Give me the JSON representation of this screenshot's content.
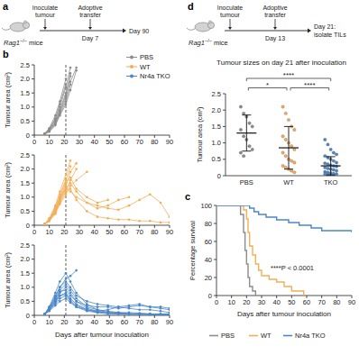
{
  "schematics": [
    {
      "panel": "a",
      "mouse_gene": "Rag1",
      "mouse_genotype": "−/−",
      "mouse_suffix": "mice",
      "steps": [
        "Inoculate tumour",
        "Adoptive transfer"
      ],
      "day_labels": [
        "Day 7",
        "Day 90"
      ]
    },
    {
      "panel": "d",
      "mouse_gene": "Rag1",
      "mouse_genotype": "−/−",
      "mouse_suffix": "mice",
      "steps": [
        "Inoculate tumour",
        "Adoptive transfer"
      ],
      "day_labels": [
        "Day 13",
        "Day 21:",
        "isolate TILs"
      ]
    }
  ],
  "legend_b": [
    {
      "name": "PBS",
      "color": "#8c8c8c",
      "marker": "circle"
    },
    {
      "name": "WT",
      "color": "#f4ae57",
      "marker": "circle"
    },
    {
      "name": "Nr4a TKO",
      "color": "#4a86c8",
      "marker": "circle"
    }
  ],
  "chart_data": [
    {
      "panel": "b",
      "type": "line",
      "marker": "circle",
      "color": "#8c8c8c",
      "vline": 21,
      "x": [
        7,
        10,
        14,
        17,
        21,
        24,
        28,
        35,
        42,
        49,
        56,
        63,
        70,
        77,
        84,
        90
      ],
      "series": [
        {
          "values": [
            0.05,
            0.2,
            0.5,
            0.9,
            1.5,
            2.1,
            null,
            null,
            null,
            null,
            null,
            null,
            null,
            null,
            null,
            null
          ]
        },
        {
          "values": [
            0.05,
            0.15,
            0.4,
            0.8,
            1.3,
            1.9,
            2.4,
            null,
            null,
            null,
            null,
            null,
            null,
            null,
            null,
            null
          ]
        },
        {
          "values": [
            0.04,
            0.2,
            0.6,
            1.1,
            1.8,
            null,
            null,
            null,
            null,
            null,
            null,
            null,
            null,
            null,
            null,
            null
          ]
        },
        {
          "values": [
            0.06,
            0.25,
            0.7,
            1.2,
            2.0,
            null,
            null,
            null,
            null,
            null,
            null,
            null,
            null,
            null,
            null,
            null
          ]
        },
        {
          "values": [
            0.05,
            0.18,
            0.45,
            0.85,
            1.4,
            2.2,
            null,
            null,
            null,
            null,
            null,
            null,
            null,
            null,
            null,
            null
          ]
        },
        {
          "values": [
            0.03,
            0.12,
            0.35,
            0.7,
            1.1,
            1.6,
            2.3,
            null,
            null,
            null,
            null,
            null,
            null,
            null,
            null,
            null
          ]
        },
        {
          "values": [
            0.05,
            0.22,
            0.55,
            1.0,
            1.7,
            2.4,
            null,
            null,
            null,
            null,
            null,
            null,
            null,
            null,
            null,
            null
          ]
        },
        {
          "values": [
            0.04,
            0.15,
            0.4,
            0.75,
            1.2,
            1.8,
            null,
            null,
            null,
            null,
            null,
            null,
            null,
            null,
            null,
            null
          ]
        }
      ],
      "xlim": [
        0,
        90
      ],
      "ylim": [
        0,
        2.5
      ],
      "xticks": [
        0,
        10,
        20,
        30,
        40,
        50,
        60,
        70,
        80,
        90
      ],
      "yticks": [
        0,
        0.5,
        {
          "value": 1,
          "label": "1.0"
        },
        1.5,
        {
          "value": 2,
          "label": "2.0"
        },
        2.5
      ],
      "y_label": "Tumour area (cm²)"
    },
    {
      "type": "line",
      "marker": "circle",
      "color": "#f4ae57",
      "vline": 21,
      "x": [
        7,
        10,
        14,
        17,
        21,
        24,
        28,
        35,
        42,
        49,
        56,
        63,
        70,
        77,
        84,
        90
      ],
      "series": [
        {
          "values": [
            0.05,
            0.2,
            0.5,
            0.9,
            1.4,
            1.9,
            2.2,
            null,
            null,
            null,
            null,
            null,
            null,
            null,
            null,
            null
          ]
        },
        {
          "values": [
            0.04,
            0.15,
            0.45,
            0.8,
            1.2,
            1.6,
            2.0,
            null,
            null,
            null,
            null,
            null,
            null,
            null,
            null,
            null
          ]
        },
        {
          "values": [
            0.05,
            0.25,
            0.7,
            1.2,
            1.8,
            2.3,
            null,
            null,
            null,
            null,
            null,
            null,
            null,
            null,
            null,
            null
          ]
        },
        {
          "values": [
            0.04,
            0.2,
            0.6,
            1.0,
            1.3,
            1.2,
            1.0,
            0.8,
            0.7,
            0.6,
            0.55,
            0.7,
            0.9,
            1.1,
            0.8,
            0.3
          ]
        },
        {
          "values": [
            0.05,
            0.2,
            0.55,
            0.95,
            1.5,
            1.7,
            1.3,
            1.0,
            0.8,
            0.9,
            null,
            null,
            null,
            null,
            null,
            null
          ]
        },
        {
          "values": [
            0.03,
            0.15,
            0.4,
            0.75,
            1.1,
            1.4,
            1.6,
            1.9,
            null,
            null,
            null,
            null,
            null,
            null,
            null,
            null
          ]
        },
        {
          "values": [
            0.05,
            0.22,
            0.65,
            1.1,
            1.6,
            2.1,
            null,
            null,
            null,
            null,
            null,
            null,
            null,
            null,
            null,
            null
          ]
        },
        {
          "values": [
            0.04,
            0.18,
            0.5,
            0.9,
            1.3,
            1.5,
            1.2,
            0.8,
            0.6,
            0.7,
            0.9,
            1.0,
            null,
            null,
            null,
            null
          ]
        },
        {
          "values": [
            0.05,
            0.2,
            0.55,
            1.0,
            1.6,
            null,
            null,
            null,
            null,
            null,
            null,
            null,
            null,
            null,
            null,
            null
          ]
        },
        {
          "values": [
            0.04,
            0.16,
            0.45,
            0.85,
            1.25,
            1.3,
            0.9,
            0.5,
            0.3,
            0.25,
            0.2,
            0.2,
            0.15,
            0.15,
            0.1,
            0.1
          ]
        }
      ],
      "xlim": [
        0,
        90
      ],
      "ylim": [
        0,
        2.5
      ],
      "xticks": [
        0,
        10,
        20,
        30,
        40,
        50,
        60,
        70,
        80,
        90
      ],
      "yticks": [
        0,
        0.5,
        {
          "value": 1,
          "label": "1.0"
        },
        1.5,
        {
          "value": 2,
          "label": "2.0"
        },
        2.5
      ],
      "y_label": "Tumour area (cm²)"
    },
    {
      "type": "line",
      "marker": "circle",
      "color": "#4a86c8",
      "vline": 21,
      "x": [
        7,
        10,
        14,
        17,
        21,
        24,
        28,
        35,
        42,
        49,
        56,
        63,
        70,
        77,
        84,
        90
      ],
      "series": [
        {
          "values": [
            0.05,
            0.3,
            0.8,
            1.2,
            1.5,
            1.2,
            0.8,
            0.4,
            0.2,
            0.15,
            0.1,
            0.1,
            0.08,
            0.05,
            0.05,
            0.05
          ]
        },
        {
          "values": [
            0.04,
            0.25,
            0.6,
            0.9,
            1.1,
            0.9,
            0.6,
            0.3,
            0.2,
            0.1,
            0.1,
            0.05,
            0.05,
            0.05,
            0.03,
            0.03
          ]
        },
        {
          "values": [
            0.05,
            0.2,
            0.5,
            0.8,
            1.0,
            0.8,
            0.5,
            0.25,
            0.15,
            0.1,
            0.08,
            0.05,
            0.05,
            0.04,
            0.04,
            0.03
          ]
        },
        {
          "values": [
            0.05,
            0.3,
            0.7,
            1.0,
            1.3,
            1.4,
            1.6,
            null,
            null,
            null,
            null,
            null,
            null,
            null,
            null,
            null
          ]
        },
        {
          "values": [
            0.04,
            0.2,
            0.4,
            0.6,
            0.7,
            0.5,
            0.3,
            0.2,
            0.15,
            0.2,
            0.3,
            0.35,
            0.4,
            0.3,
            0.3,
            0.25
          ]
        },
        {
          "values": [
            0.03,
            0.15,
            0.35,
            0.5,
            0.6,
            0.45,
            0.3,
            0.15,
            0.1,
            0.1,
            0.05,
            0.05,
            0.05,
            0.03,
            0.03,
            0.02
          ]
        },
        {
          "values": [
            0.05,
            0.25,
            0.65,
            1.0,
            1.2,
            1.0,
            0.7,
            0.5,
            0.4,
            0.35,
            0.3,
            0.25,
            0.2,
            0.2,
            0.15,
            0.1
          ]
        },
        {
          "values": [
            0.04,
            0.2,
            0.5,
            0.7,
            0.8,
            0.6,
            0.4,
            0.2,
            0.1,
            0.05,
            0.05,
            0.04,
            0.03,
            0.03,
            0.02,
            0.02
          ]
        },
        {
          "values": [
            0.05,
            0.25,
            0.55,
            0.85,
            0.9,
            0.7,
            0.5,
            0.35,
            0.3,
            0.3,
            0.25,
            0.3,
            0.35,
            0.3,
            0.25,
            0.2
          ]
        },
        {
          "values": [
            0.04,
            0.18,
            0.45,
            0.7,
            0.75,
            0.55,
            0.35,
            0.2,
            0.12,
            0.1,
            0.08,
            0.06,
            0.05,
            0.05,
            0.04,
            0.04
          ]
        }
      ],
      "xlim": [
        0,
        90
      ],
      "ylim": [
        0,
        2.5
      ],
      "xticks": [
        0,
        10,
        20,
        30,
        40,
        50,
        60,
        70,
        80,
        90
      ],
      "yticks": [
        0,
        0.5,
        {
          "value": 1,
          "label": "1.0"
        },
        1.5,
        {
          "value": 2,
          "label": "2.0"
        },
        2.5
      ],
      "y_label": "Tumour area (cm²)",
      "x_label": "Days after tumour inoculation"
    },
    {
      "panel": "c",
      "type": "line",
      "line_style": "step",
      "legend": "bottom",
      "series": [
        {
          "name": "PBS",
          "color": "#8c8c8c",
          "x": [
            0,
            16,
            18,
            19,
            20,
            21,
            22,
            24,
            26
          ],
          "values": [
            100,
            90,
            70,
            50,
            35,
            20,
            10,
            5,
            0
          ]
        },
        {
          "name": "WT",
          "color": "#f4ae57",
          "x": [
            0,
            18,
            20,
            21,
            22,
            24,
            26,
            28,
            30,
            35,
            40,
            45,
            50,
            58
          ],
          "values": [
            100,
            95,
            85,
            70,
            55,
            45,
            35,
            28,
            22,
            18,
            15,
            10,
            5,
            0
          ]
        },
        {
          "name": "Nr4a TKO",
          "color": "#4a86c8",
          "x": [
            0,
            22,
            25,
            28,
            33,
            40,
            48,
            55,
            63,
            70,
            90
          ],
          "values": [
            100,
            97,
            93,
            90,
            87,
            84,
            81,
            78,
            75,
            72,
            70
          ]
        }
      ],
      "xlim": [
        0,
        90
      ],
      "ylim": [
        0,
        100
      ],
      "xticks": [
        0,
        10,
        20,
        30,
        40,
        50,
        60,
        70,
        80,
        90
      ],
      "yticks": [
        0,
        20,
        40,
        60,
        80,
        100
      ],
      "x_label": "Days after tumour inoculation",
      "y_label": "Percentage survival",
      "annotation": "****P < 0.0001"
    },
    {
      "type": "dot",
      "title": "Tumour sizes on day 21 after inoculation",
      "categories": [
        "PBS",
        "WT",
        "TKO"
      ],
      "colors": [
        "#8c8c8c",
        "#f4ae57",
        "#4a86c8"
      ],
      "points": [
        [
          2.1,
          1.9,
          1.8,
          1.6,
          1.5,
          1.4,
          1.2,
          1.1,
          0.9,
          0.8,
          0.7,
          0.6
        ],
        [
          2.1,
          1.9,
          1.7,
          1.5,
          1.4,
          1.2,
          1.1,
          1.0,
          0.9,
          0.8,
          0.7,
          0.6,
          0.5,
          0.45,
          0.4,
          0.3,
          0.25,
          0.2,
          0.15,
          0.1
        ],
        [
          1.1,
          0.95,
          0.8,
          0.7,
          0.65,
          0.6,
          0.55,
          0.5,
          0.45,
          0.4,
          0.38,
          0.35,
          0.32,
          0.3,
          0.28,
          0.25,
          0.22,
          0.2,
          0.18,
          0.15,
          0.12,
          0.1,
          0.08,
          0.06,
          0.05,
          0.04,
          0.03,
          0.02
        ]
      ],
      "means": [
        1.3,
        0.85,
        0.3
      ],
      "sd": [
        0.55,
        0.65,
        0.28
      ],
      "ylim": [
        0,
        2.5
      ],
      "yticks": [
        0,
        0.5,
        {
          "value": 1,
          "label": "1.0"
        },
        1.5,
        {
          "value": 2,
          "label": "2.0"
        },
        2.5
      ],
      "y_label": "Tumour area (cm²)",
      "significance": [
        {
          "from": 0,
          "to": 1,
          "label": "*"
        },
        {
          "from": 0,
          "to": 2,
          "label": "****"
        },
        {
          "from": 1,
          "to": 2,
          "label": "****"
        }
      ]
    }
  ]
}
